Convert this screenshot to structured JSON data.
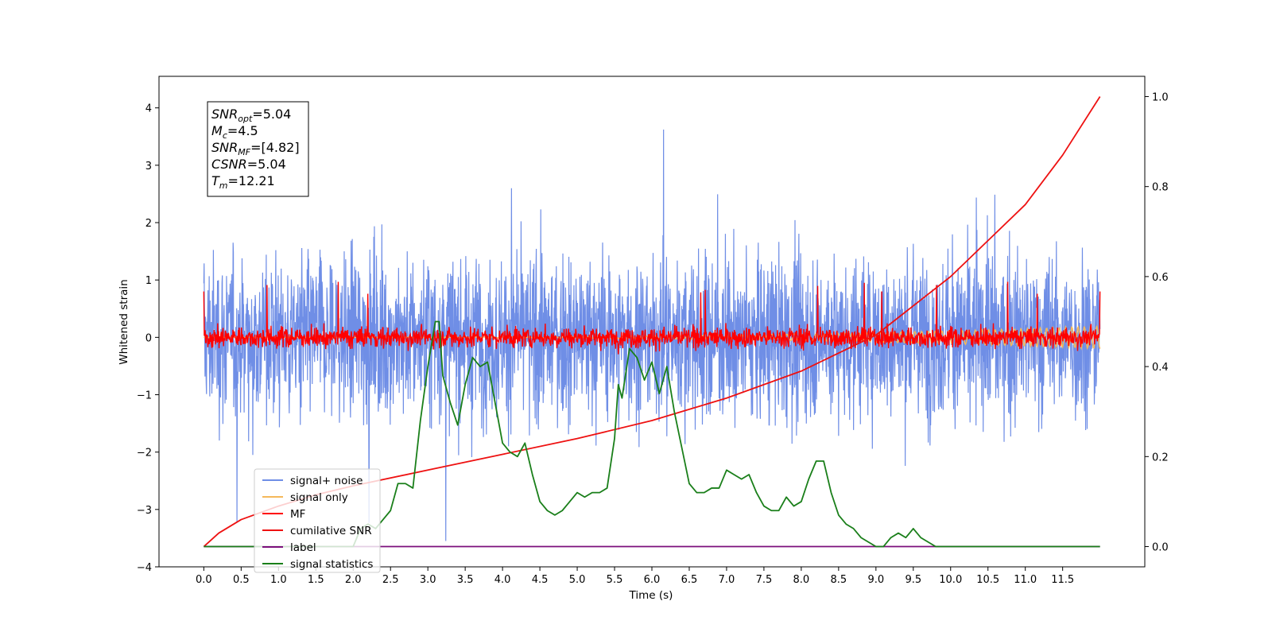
{
  "chart_data": {
    "type": "line",
    "xlabel": "Time (s)",
    "ylabel": "Whitened strain",
    "xlim": [
      -0.6,
      12.6
    ],
    "ylim": [
      -4.0,
      4.55
    ],
    "ylim_right": [
      -0.045,
      1.045
    ],
    "x_ticks": [
      "0.0",
      "0.5",
      "1.0",
      "1.5",
      "2.0",
      "2.5",
      "3.0",
      "3.5",
      "4.0",
      "4.5",
      "5.0",
      "5.5",
      "6.0",
      "6.5",
      "7.0",
      "7.5",
      "8.0",
      "8.5",
      "9.0",
      "9.5",
      "10.0",
      "10.5",
      "11.0",
      "11.5"
    ],
    "y_ticks_left": [
      "4",
      "3",
      "2",
      "1",
      "0",
      "−1",
      "−2",
      "−3",
      "−4"
    ],
    "y_ticks_right": [
      "1.0",
      "0.8",
      "0.6",
      "0.4",
      "0.2",
      "0.0"
    ],
    "legend_placement": "lower left",
    "annotation": {
      "snr_opt": {
        "label": "SNR",
        "sub": "opt",
        "value": "=5.04"
      },
      "mc": {
        "label": "M",
        "sub": "c",
        "value": "=4.5"
      },
      "snr_mf": {
        "label": "SNR",
        "sub": "MF",
        "value": "=[4.82]"
      },
      "csnr": {
        "label": "CSNR",
        "value": "=5.04"
      },
      "tm": {
        "label": "T",
        "sub": "m",
        "value": "=12.21"
      }
    },
    "series": [
      {
        "name": "signal+ noise",
        "color": "#6f8ee6",
        "axis": "left",
        "amplitude": 1.0,
        "x_range": [
          0,
          12
        ]
      },
      {
        "name": "signal only",
        "color": "#f5b85a",
        "axis": "left",
        "x_range": [
          0,
          12
        ],
        "amplitude_start": 0.0,
        "amplitude_end": 0.2
      },
      {
        "name": "MF",
        "color": "#ff0000",
        "axis": "left",
        "x_range": [
          0,
          12
        ],
        "amplitude": 0.13
      },
      {
        "name": "cumilative SNR",
        "color": "#ee1111",
        "axis": "right",
        "x": [
          0,
          0.2,
          0.5,
          1,
          1.5,
          2,
          3,
          4,
          5,
          6,
          7,
          8,
          9,
          10,
          10.5,
          11,
          11.5,
          12
        ],
        "y": [
          0.0,
          0.03,
          0.06,
          0.09,
          0.115,
          0.135,
          0.17,
          0.205,
          0.24,
          0.28,
          0.33,
          0.39,
          0.47,
          0.6,
          0.68,
          0.76,
          0.87,
          1.0
        ]
      },
      {
        "name": "label",
        "color": "#7b0f7b",
        "axis": "right",
        "x": [
          0,
          12
        ],
        "y": [
          0.0,
          0.0
        ]
      },
      {
        "name": "signal statistics",
        "color": "#1a7f1a",
        "axis": "right",
        "x": [
          0.0,
          1.0,
          2.0,
          2.1,
          2.2,
          2.3,
          2.4,
          2.5,
          2.6,
          2.7,
          2.8,
          2.9,
          3.0,
          3.1,
          3.15,
          3.2,
          3.3,
          3.4,
          3.5,
          3.6,
          3.7,
          3.8,
          3.9,
          4.0,
          4.1,
          4.2,
          4.3,
          4.4,
          4.5,
          4.6,
          4.7,
          4.8,
          4.9,
          5.0,
          5.1,
          5.2,
          5.3,
          5.4,
          5.5,
          5.55,
          5.6,
          5.7,
          5.8,
          5.9,
          6.0,
          6.1,
          6.2,
          6.3,
          6.4,
          6.5,
          6.6,
          6.7,
          6.8,
          6.9,
          7.0,
          7.1,
          7.2,
          7.3,
          7.4,
          7.5,
          7.6,
          7.7,
          7.8,
          7.9,
          8.0,
          8.1,
          8.2,
          8.3,
          8.4,
          8.5,
          8.6,
          8.7,
          8.8,
          8.9,
          9.0,
          9.1,
          9.2,
          9.3,
          9.4,
          9.5,
          9.6,
          9.7,
          9.8,
          10.0,
          10.5,
          11.0,
          12.0
        ],
        "y": [
          0.0,
          0.0,
          0.0,
          0.04,
          0.05,
          0.04,
          0.06,
          0.08,
          0.14,
          0.14,
          0.13,
          0.28,
          0.4,
          0.5,
          0.5,
          0.38,
          0.32,
          0.27,
          0.36,
          0.42,
          0.4,
          0.41,
          0.32,
          0.23,
          0.21,
          0.2,
          0.23,
          0.16,
          0.1,
          0.08,
          0.07,
          0.08,
          0.1,
          0.12,
          0.11,
          0.12,
          0.12,
          0.13,
          0.24,
          0.36,
          0.33,
          0.44,
          0.42,
          0.37,
          0.41,
          0.34,
          0.4,
          0.3,
          0.22,
          0.14,
          0.12,
          0.12,
          0.13,
          0.13,
          0.17,
          0.16,
          0.15,
          0.16,
          0.12,
          0.09,
          0.08,
          0.08,
          0.11,
          0.09,
          0.1,
          0.15,
          0.19,
          0.19,
          0.12,
          0.07,
          0.05,
          0.04,
          0.02,
          0.01,
          0.0,
          0.0,
          0.02,
          0.03,
          0.02,
          0.04,
          0.02,
          0.01,
          0.0,
          0.0,
          0.0,
          0.0,
          0.0
        ]
      }
    ]
  }
}
